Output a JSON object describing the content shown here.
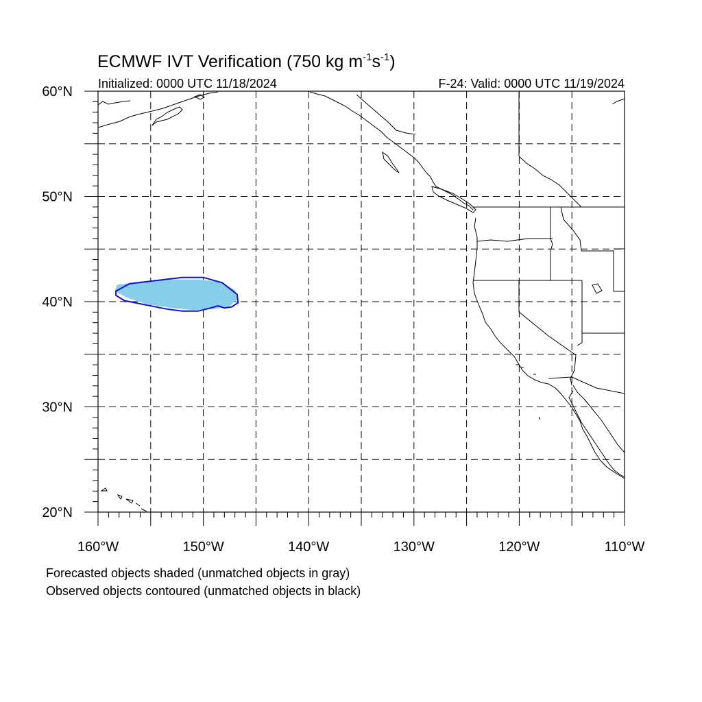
{
  "title": {
    "text": "ECMWF IVT Verification (750 kg m",
    "sup1": "-1",
    "mid": "s",
    "sup2": "-1",
    "end": ")"
  },
  "init_label": "Initialized: 0000 UTC 11/18/2024",
  "valid_label": "F-24: Valid: 0000 UTC 11/19/2024",
  "lat_ticks": [
    {
      "lat": 60,
      "text": "60°N"
    },
    {
      "lat": 50,
      "text": "50°N"
    },
    {
      "lat": 40,
      "text": "40°N"
    },
    {
      "lat": 30,
      "text": "30°N"
    },
    {
      "lat": 20,
      "text": "20°N"
    }
  ],
  "lon_ticks": [
    {
      "lon": -160,
      "text": "160°W"
    },
    {
      "lon": -150,
      "text": "150°W"
    },
    {
      "lon": -140,
      "text": "140°W"
    },
    {
      "lon": -130,
      "text": "130°W"
    },
    {
      "lon": -120,
      "text": "120°W"
    },
    {
      "lon": -110,
      "text": "110°W"
    }
  ],
  "footnotes": [
    "Forecasted objects shaded (unmatched objects in gray)",
    "Observed objects contoured (unmatched objects in black)"
  ],
  "colors": {
    "forecast_fill": "#87ceeb",
    "observed_contour": "#1010cc",
    "coast": "#000000",
    "grid": "#000000"
  },
  "map_extent": {
    "lon_min": -160,
    "lon_max": -110,
    "lat_min": 20,
    "lat_max": 60
  },
  "objects": {
    "forecast": [
      [
        -158.2,
        41.6
      ],
      [
        -156,
        41.9
      ],
      [
        -153,
        42.1
      ],
      [
        -150.5,
        42.1
      ],
      [
        -148.5,
        41.9
      ],
      [
        -147,
        41.1
      ],
      [
        -146.8,
        40.2
      ],
      [
        -147.6,
        39.5
      ],
      [
        -149,
        39.3
      ],
      [
        -151,
        39.2
      ],
      [
        -153,
        39.4
      ],
      [
        -155.5,
        39.8
      ],
      [
        -157.3,
        40.4
      ],
      [
        -158.4,
        41.0
      ]
    ],
    "observed": [
      [
        -158.3,
        41.0
      ],
      [
        -157,
        41.7
      ],
      [
        -154.5,
        42.0
      ],
      [
        -152,
        42.3
      ],
      [
        -150,
        42.3
      ],
      [
        -148.2,
        41.8
      ],
      [
        -146.8,
        40.7
      ],
      [
        -146.7,
        39.9
      ],
      [
        -147.3,
        39.5
      ],
      [
        -148,
        39.4
      ],
      [
        -148.6,
        39.6
      ],
      [
        -149.3,
        39.4
      ],
      [
        -150.5,
        39.1
      ],
      [
        -152,
        39.1
      ],
      [
        -153.5,
        39.3
      ],
      [
        -155.5,
        39.7
      ],
      [
        -157.5,
        40.1
      ],
      [
        -158.3,
        40.6
      ]
    ]
  }
}
